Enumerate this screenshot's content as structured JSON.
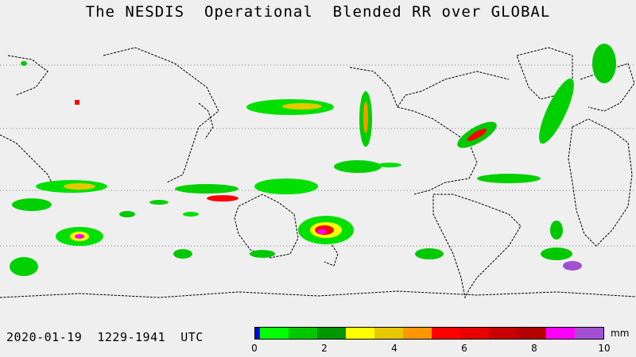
{
  "title": "The NESDIS  Operational  Blended RR over GLOBAL",
  "date_range": "2020-01-19  1229-1941  UTC",
  "legend": {
    "unit": "mm",
    "ticks": [
      "0",
      "2",
      "4",
      "6",
      "8",
      "10"
    ],
    "colors": [
      "#0000ff",
      "#00ff00",
      "#00c800",
      "#009600",
      "#ffff00",
      "#e6c800",
      "#ff9600",
      "#ff0000",
      "#e60000",
      "#c80000",
      "#b40000",
      "#ff00ff",
      "#a050d0"
    ]
  },
  "map": {
    "background": "#efefef",
    "coastline_color": "#000000",
    "gridline_style": "dotted"
  }
}
